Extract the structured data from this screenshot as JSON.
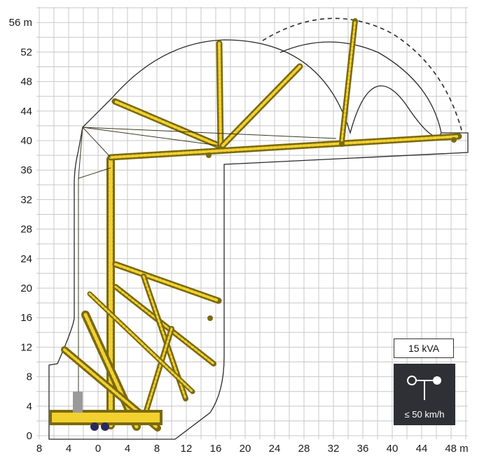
{
  "axes": {
    "y_unit_label": "56 m",
    "y_ticks": [
      "52",
      "48",
      "44",
      "40",
      "36",
      "32",
      "28",
      "24",
      "20",
      "16",
      "12",
      "8",
      "4",
      "0"
    ],
    "x_ticks": [
      "8",
      "4",
      "0",
      "4",
      "8",
      "12",
      "16",
      "20",
      "24",
      "28",
      "32",
      "36",
      "40",
      "44"
    ],
    "x_unit_label": "48 m"
  },
  "colors": {
    "crane_yellow": "#f2d02e",
    "crane_dark": "#7a6a10",
    "grid": "#c8c8c8",
    "panel": "#2f3035"
  },
  "info": {
    "power": "15 kVA",
    "wind_icon": "anemometer-icon",
    "wind_limit": "≤ 50 km/h"
  }
}
